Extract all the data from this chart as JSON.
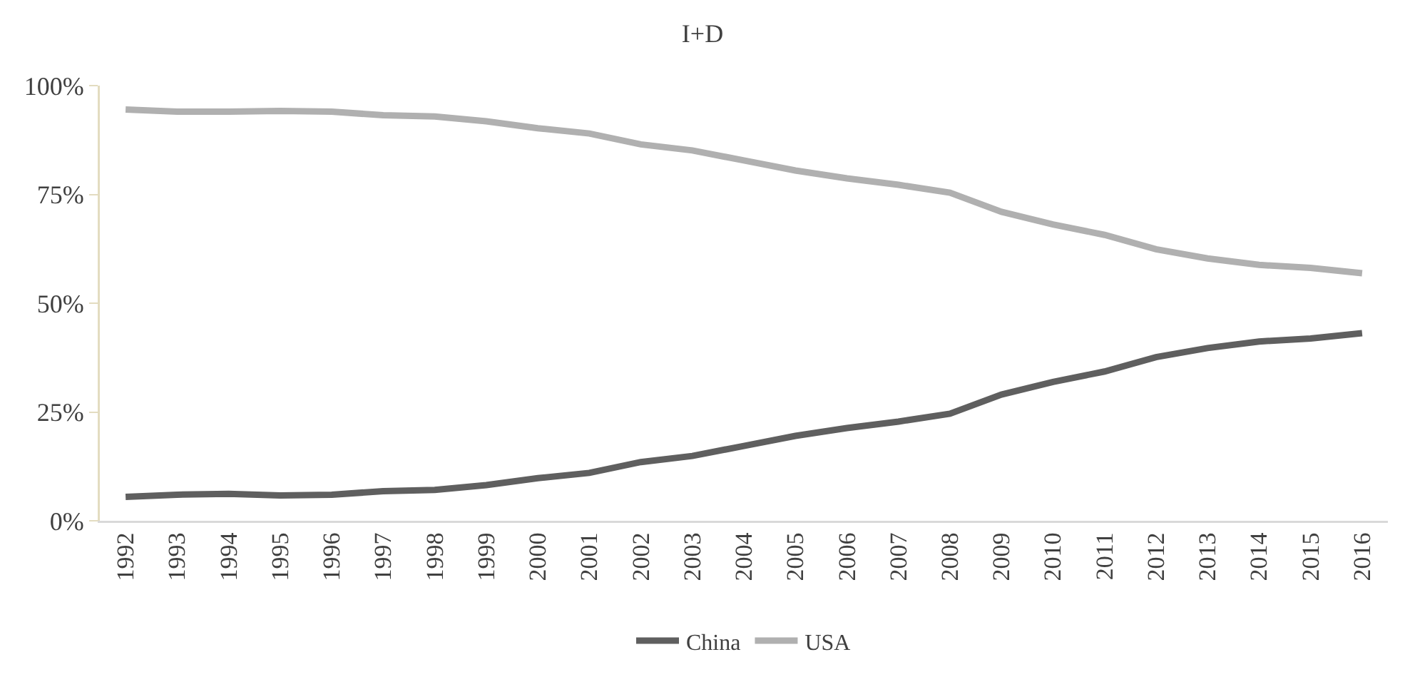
{
  "chart_data": {
    "type": "line",
    "title": "I+D",
    "categories": [
      "1992",
      "1993",
      "1994",
      "1995",
      "1996",
      "1997",
      "1998",
      "1999",
      "2000",
      "2001",
      "2002",
      "2003",
      "2004",
      "2005",
      "2006",
      "2007",
      "2008",
      "2009",
      "2010",
      "2011",
      "2012",
      "2013",
      "2014",
      "2015",
      "2016"
    ],
    "series": [
      {
        "name": "China",
        "color": "#5f5f5f",
        "values": [
          5.5,
          6,
          6.2,
          5.8,
          6,
          6.8,
          7.1,
          8.2,
          9.8,
          11,
          13.5,
          14.9,
          17.2,
          19.5,
          21.3,
          22.8,
          24.6,
          29,
          31.9,
          34.3,
          37.6,
          39.7,
          41.2,
          41.9,
          43.1
        ]
      },
      {
        "name": "USA",
        "color": "#b0b0b0",
        "values": [
          94.5,
          94,
          94,
          94.2,
          94,
          93.2,
          92.9,
          91.8,
          90.2,
          89,
          86.5,
          85.1,
          82.8,
          80.5,
          78.7,
          77.2,
          75.4,
          71,
          68.1,
          65.7,
          62.4,
          60.3,
          58.8,
          58.1,
          56.9
        ]
      }
    ],
    "ylim": [
      0,
      100
    ],
    "yticks": [
      {
        "value": 0,
        "label": "0%"
      },
      {
        "value": 25,
        "label": "25%"
      },
      {
        "value": 50,
        "label": "50%"
      },
      {
        "value": 75,
        "label": "75%"
      },
      {
        "value": 100,
        "label": "100%"
      }
    ],
    "grid": false,
    "legend": "bottom",
    "marker": "none",
    "line_style": "solid"
  }
}
